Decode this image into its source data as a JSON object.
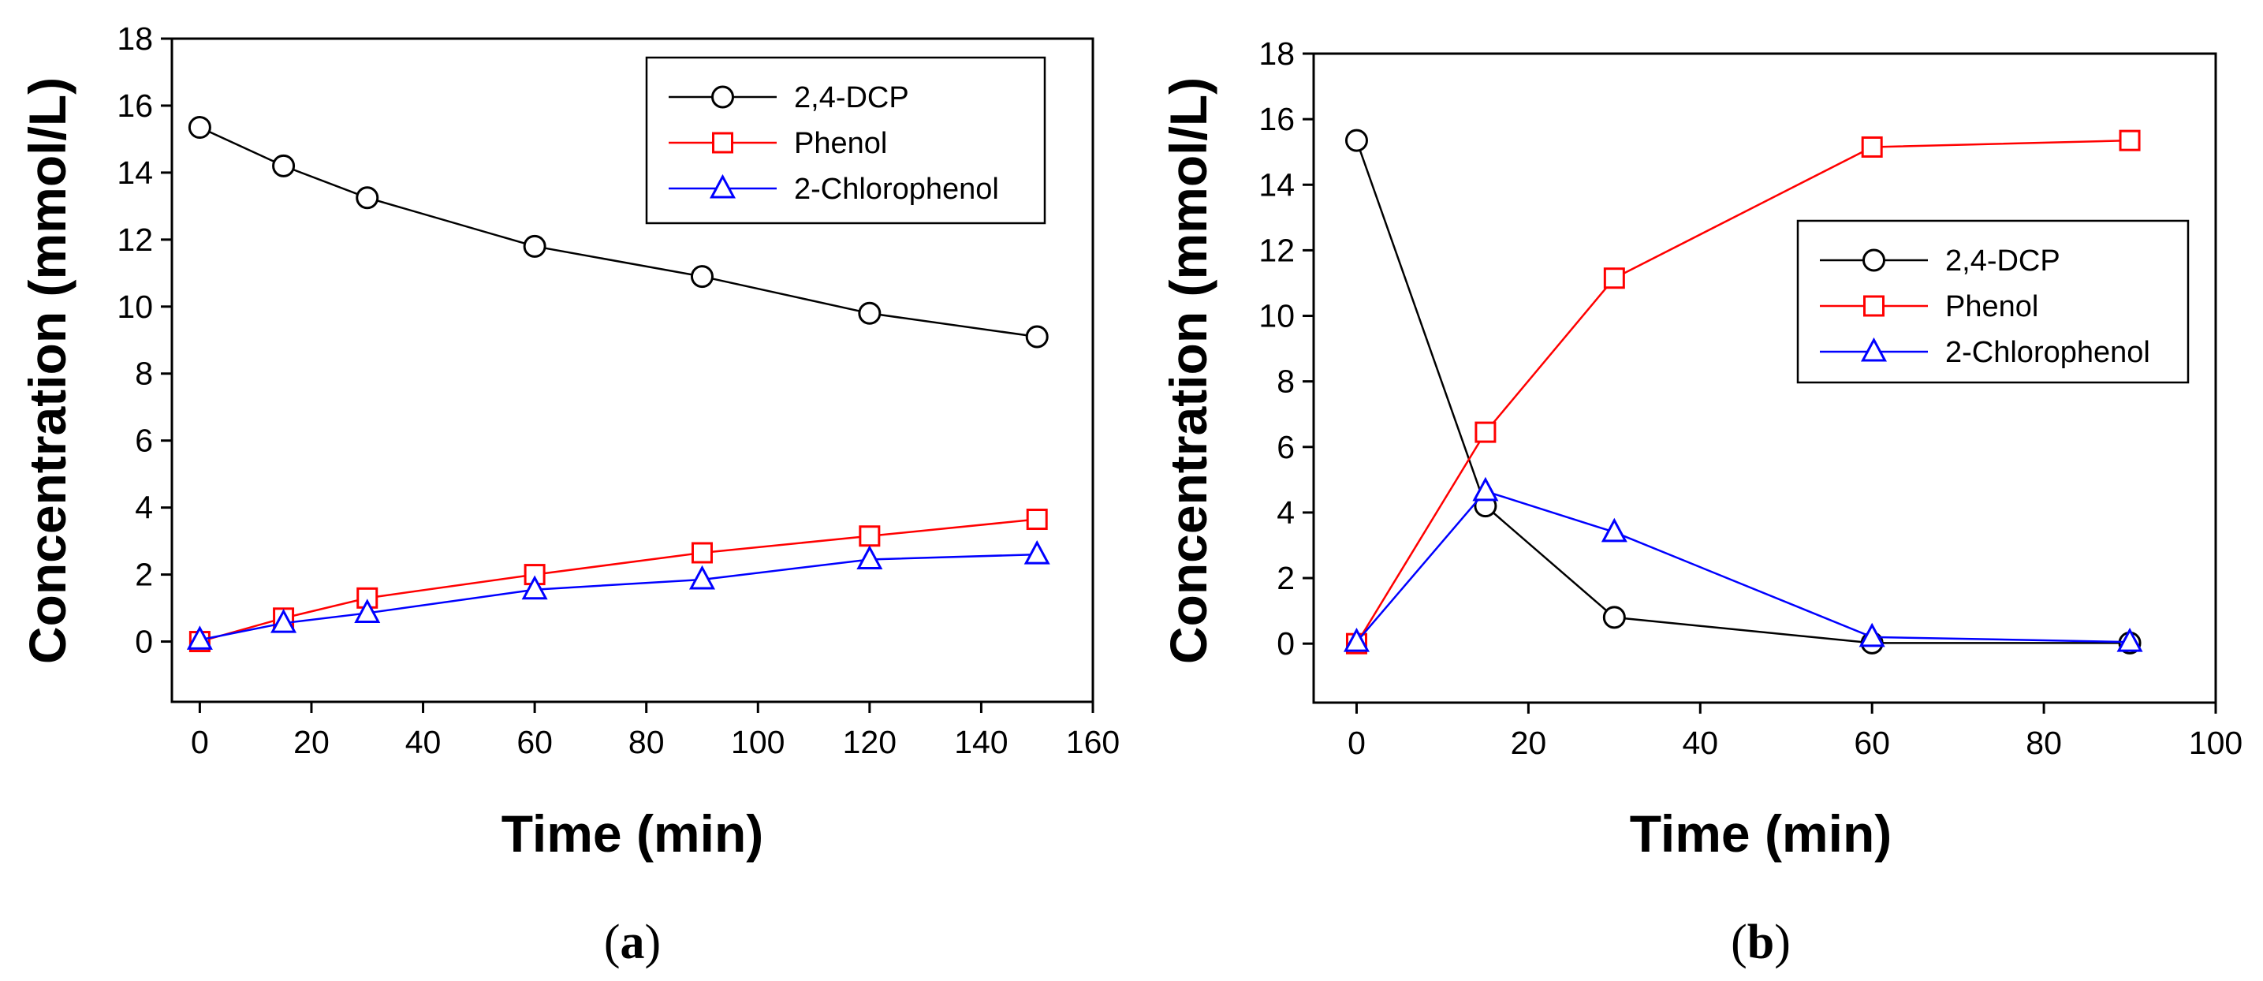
{
  "chart_data": [
    {
      "type": "line",
      "panel_label": {
        "open": "(",
        "letter": "a",
        "close": ")"
      },
      "xlabel": "Time (min)",
      "ylabel": "Concentration (mmol/L)",
      "xlim": [
        -5,
        160
      ],
      "ylim": [
        -1.8,
        18
      ],
      "xticks": [
        0,
        20,
        40,
        60,
        80,
        100,
        120,
        140,
        160
      ],
      "yticks": [
        0,
        2,
        4,
        6,
        8,
        10,
        12,
        14,
        16,
        18
      ],
      "legend_position": "top-right",
      "series": [
        {
          "name": "2,4-DCP",
          "color": "#000000",
          "marker": "circle",
          "x": [
            0,
            15,
            30,
            60,
            90,
            120,
            150
          ],
          "y": [
            15.35,
            14.2,
            13.25,
            11.8,
            10.9,
            9.8,
            9.1
          ]
        },
        {
          "name": "Phenol",
          "color": "#ff0000",
          "marker": "square",
          "x": [
            0,
            15,
            30,
            60,
            90,
            120,
            150
          ],
          "y": [
            0,
            0.7,
            1.3,
            2.0,
            2.65,
            3.15,
            3.65
          ]
        },
        {
          "name": "2-Chlorophenol",
          "color": "#0000ff",
          "marker": "triangle",
          "x": [
            0,
            15,
            30,
            60,
            90,
            120,
            150
          ],
          "y": [
            0.05,
            0.55,
            0.85,
            1.55,
            1.85,
            2.45,
            2.6
          ]
        }
      ]
    },
    {
      "type": "line",
      "panel_label": {
        "open": "(",
        "letter": "b",
        "close": ")"
      },
      "xlabel": "Time (min)",
      "ylabel": "Concentration (mmol/L)",
      "xlim": [
        -5,
        100
      ],
      "ylim": [
        -1.8,
        18
      ],
      "xticks": [
        0,
        20,
        40,
        60,
        80,
        100
      ],
      "yticks": [
        0,
        2,
        4,
        6,
        8,
        10,
        12,
        14,
        16,
        18
      ],
      "legend_position": "center-right",
      "series": [
        {
          "name": "2,4-DCP",
          "color": "#000000",
          "marker": "circle",
          "x": [
            0,
            15,
            30,
            60,
            90
          ],
          "y": [
            15.35,
            4.2,
            0.8,
            0.02,
            0.02
          ]
        },
        {
          "name": "Phenol",
          "color": "#ff0000",
          "marker": "square",
          "x": [
            0,
            15,
            30,
            60,
            90
          ],
          "y": [
            0,
            6.45,
            11.15,
            15.15,
            15.35
          ]
        },
        {
          "name": "2-Chlorophenol",
          "color": "#0000ff",
          "marker": "triangle",
          "x": [
            0,
            15,
            30,
            60,
            90
          ],
          "y": [
            0.05,
            4.65,
            3.4,
            0.2,
            0.05
          ]
        }
      ]
    }
  ]
}
